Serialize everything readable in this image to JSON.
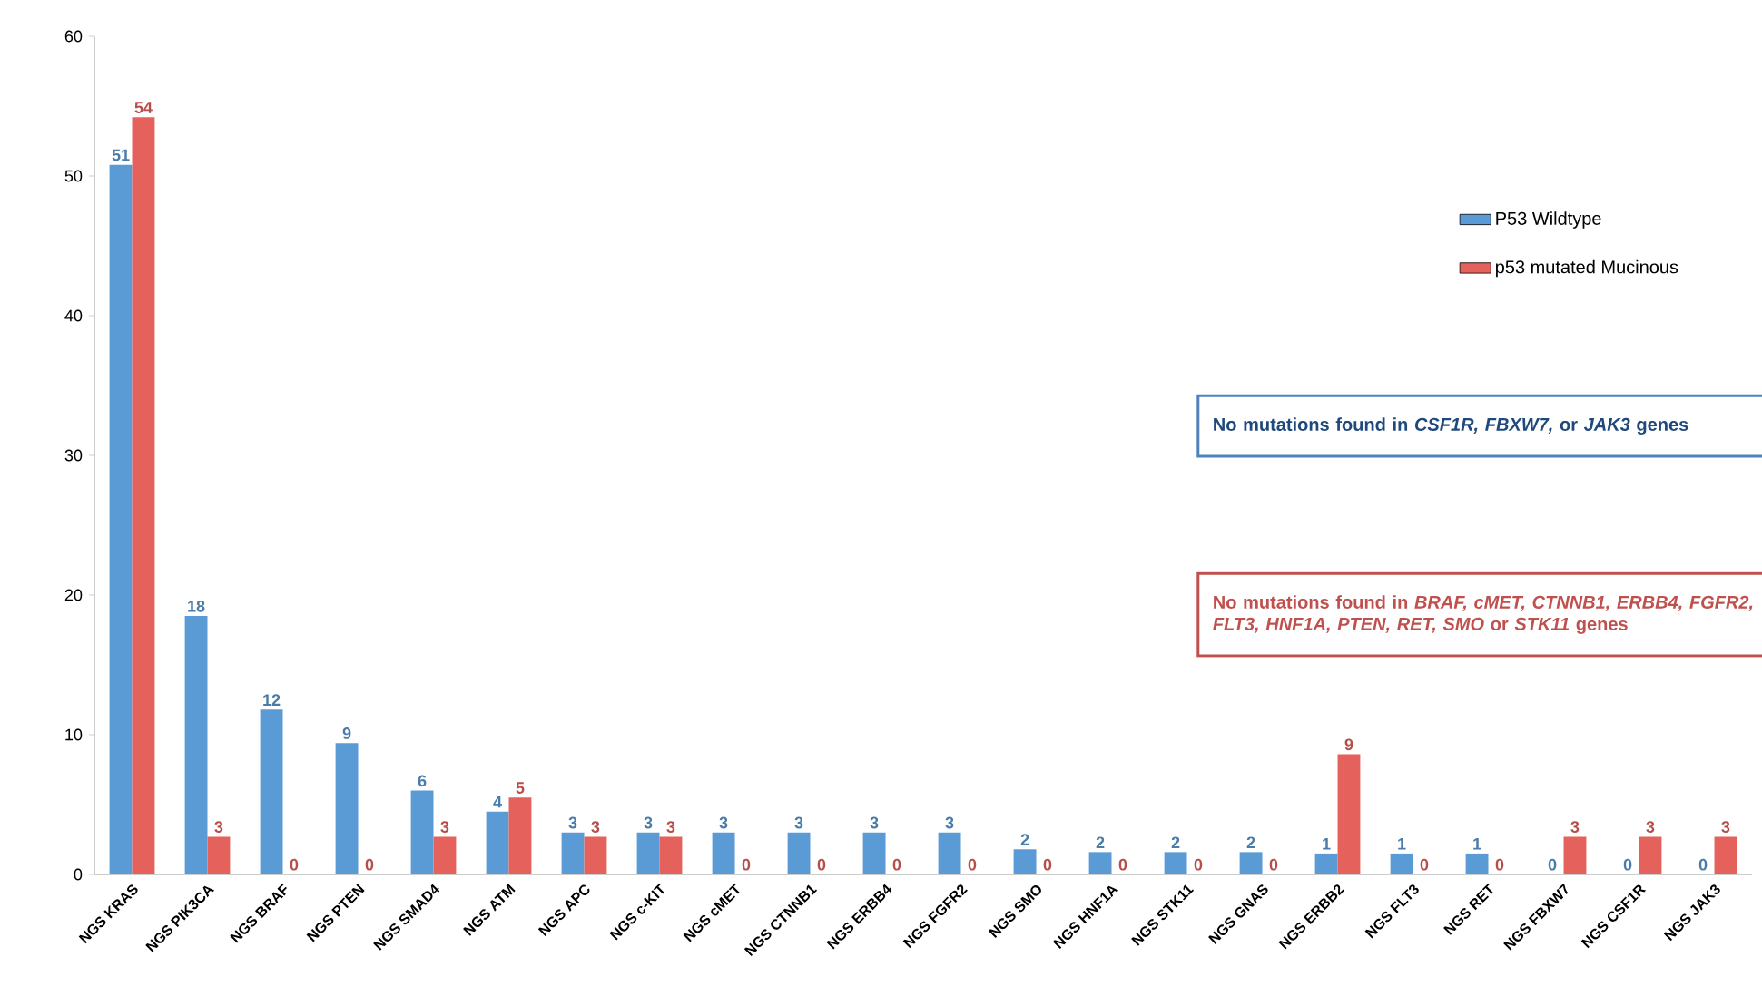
{
  "chart_data": {
    "type": "bar",
    "categories": [
      "NGS KRAS",
      "NGS PIK3CA",
      "NGS BRAF",
      "NGS PTEN",
      "NGS SMAD4",
      "NGS ATM",
      "NGS APC",
      "NGS c-KIT",
      "NGS cMET",
      "NGS CTNNB1",
      "NGS ERBB4",
      "NGS FGFR2",
      "NGS SMO",
      "NGS HNF1A",
      "NGS STK11",
      "NGS GNAS",
      "NGS ERBB2",
      "NGS FLT3",
      "NGS RET",
      "NGS FBXW7",
      "NGS CSF1R",
      "NGS JAK3"
    ],
    "series": [
      {
        "name": "P53 Wildtype",
        "color": "#5b9bd5",
        "values": [
          50.8,
          18.5,
          11.8,
          9.4,
          6.0,
          4.5,
          3.0,
          3.0,
          3.0,
          3.0,
          3.0,
          3.0,
          1.8,
          1.6,
          1.6,
          1.6,
          1.5,
          1.5,
          1.5,
          0,
          0,
          0
        ],
        "value_labels": [
          "51",
          "18",
          "12",
          "9",
          "6",
          "4",
          "3",
          "3",
          "3",
          "3",
          "3",
          "3",
          "2",
          "2",
          "2",
          "2",
          "1",
          "1",
          "1",
          "0",
          "0",
          "0"
        ]
      },
      {
        "name": "p53 mutated Mucinous",
        "color": "#e5625c",
        "values": [
          54.2,
          2.7,
          0,
          0,
          2.7,
          5.5,
          2.7,
          2.7,
          0,
          0,
          0,
          0,
          0,
          0,
          0,
          0,
          8.6,
          0,
          0,
          2.7,
          2.7,
          2.7
        ],
        "value_labels": [
          "54",
          "3",
          "0",
          "0",
          "3",
          "5",
          "3",
          "3",
          "0",
          "0",
          "0",
          "0",
          "0",
          "0",
          "0",
          "0",
          "9",
          "0",
          "0",
          "3",
          "3",
          "3"
        ]
      }
    ],
    "ylim": [
      0,
      60
    ],
    "yticks": [
      0,
      10,
      20,
      30,
      40,
      50,
      60
    ],
    "legend": "right",
    "grid": false,
    "annotations": [
      "No mutations found in *CSF1R, FBXW7,* or *JAK3* genes",
      "No mutations found in *BRAF, cMET, CTNNB1, ERBB4, FGFR2, FLT3, HNF1A, PTEN, RET, SMO* or *STK11* genes"
    ]
  }
}
